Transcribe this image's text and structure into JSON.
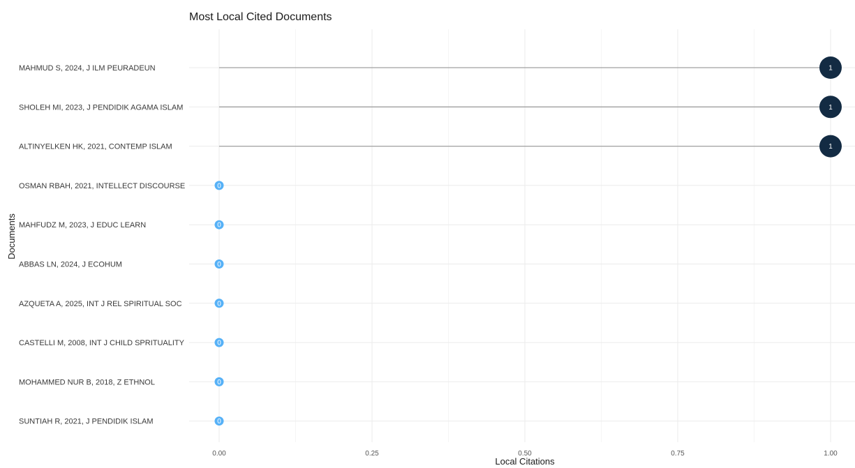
{
  "chart_data": {
    "type": "lollipop",
    "title": "Most Local Cited Documents",
    "xlabel": "Local Citations",
    "ylabel": "Documents",
    "xlim": [
      0,
      1
    ],
    "x_ticks": [
      "0.00",
      "0.25",
      "0.50",
      "0.75",
      "1.00"
    ],
    "x_tick_values": [
      0,
      0.25,
      0.5,
      0.75,
      1
    ],
    "grid": true,
    "categories": [
      "MAHMUD S, 2024, J ILM PEURADEUN",
      "SHOLEH MI, 2023, J PENDIDIK AGAMA ISLAM",
      "ALTINYELKEN HK, 2021, CONTEMP ISLAM",
      "OSMAN RBAH, 2021, INTELLECT DISCOURSE",
      "MAHFUDZ M, 2023, J EDUC LEARN",
      "ABBAS LN, 2024, J ECOHUM",
      "AZQUETA A, 2025, INT J REL SPIRITUAL SOC",
      "CASTELLI M, 2008, INT J CHILD SPRITUALITY",
      "MOHAMMED NUR B, 2018, Z ETHNOL",
      "SUNTIAH R, 2021, J PENDIDIK ISLAM"
    ],
    "values": [
      1,
      1,
      1,
      0,
      0,
      0,
      0,
      0,
      0,
      0
    ],
    "colors": {
      "high": "#132b43",
      "low": "#56b1f7",
      "stem": "#a0a0a0",
      "grid": "#ebebeb"
    }
  }
}
